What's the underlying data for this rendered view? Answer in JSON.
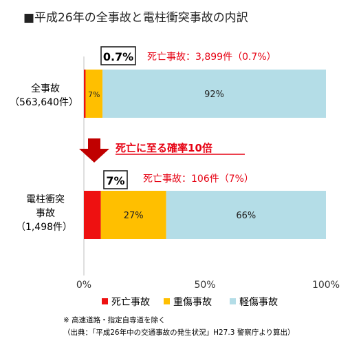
{
  "chart_data": {
    "type": "bar",
    "orientation": "horizontal",
    "stacked": true,
    "title": "■平成26年の全事故と電柱衝突事故の内訳",
    "categories": [
      {
        "line1": "全事故",
        "line2": "",
        "line3": "（563,640件）"
      },
      {
        "line1": "電柱衝突",
        "line2": "事故",
        "line3": "（1,498件）"
      }
    ],
    "series": [
      {
        "name": "死亡事故",
        "color": "#ee1111",
        "values": [
          0.7,
          7
        ],
        "labels": [
          "",
          ""
        ]
      },
      {
        "name": "重傷事故",
        "color": "#ffbf00",
        "values": [
          7,
          27
        ],
        "labels": [
          "7%",
          "27%"
        ]
      },
      {
        "name": "軽傷事故",
        "color": "#b4dde7",
        "values": [
          92.3,
          66
        ],
        "labels": [
          "92%",
          "66%"
        ]
      }
    ],
    "xlim": [
      0,
      100
    ],
    "xticks": [
      "0%",
      "50%",
      "100%"
    ],
    "xtick_values": [
      0,
      50,
      100
    ],
    "grid": false,
    "legend": "bottom",
    "annotations": {
      "fatal_boxes": [
        "0.7%",
        "7%"
      ],
      "fatal_notes": [
        "死亡事故：3,899件（0.7%）",
        "死亡事故：106件（7%）"
      ],
      "arrow_text": "死亡に至る確率10倍"
    },
    "notes": [
      "※ 高速道路・指定自専道を除く",
      "（出典：「平成26年中の交通事故の発生状況」H27.3 警察庁より算出）"
    ]
  },
  "colors": {
    "accent_red": "#e60012",
    "arrow": "#c00000"
  }
}
